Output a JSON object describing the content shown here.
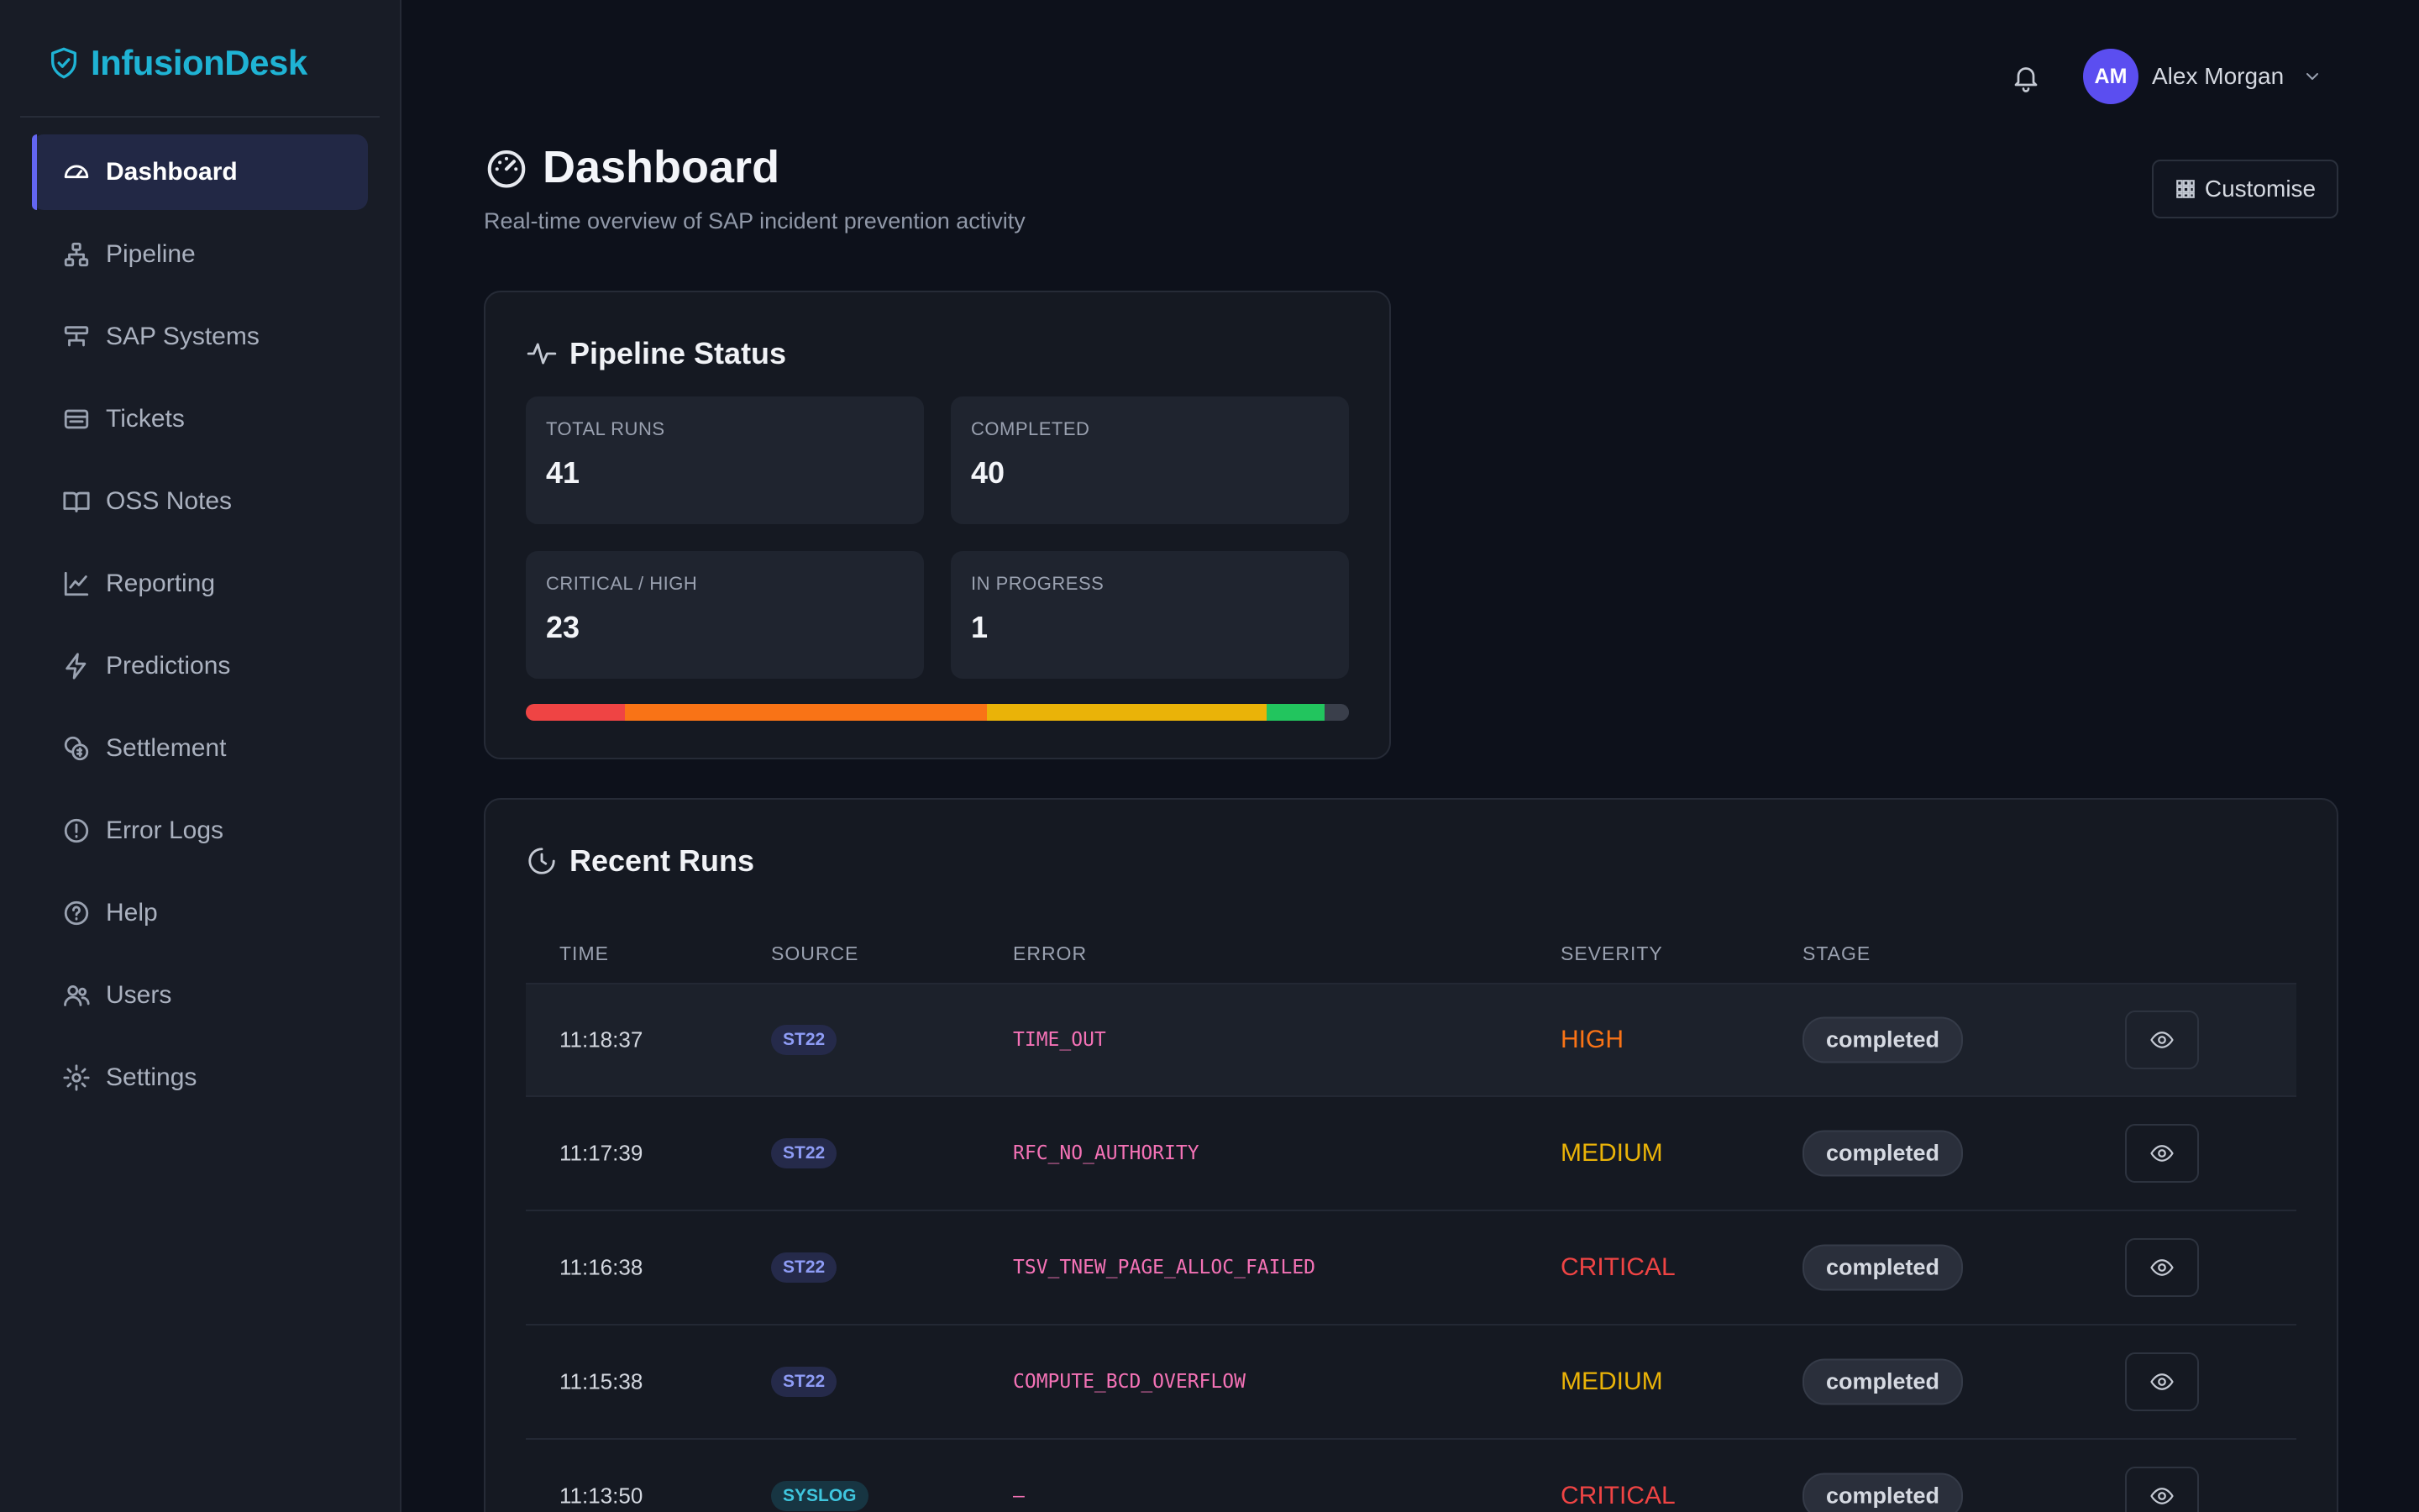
{
  "brand": {
    "name": "InfusionDesk",
    "icon": "shield-check-icon"
  },
  "sidebar": {
    "items": [
      {
        "label": "Dashboard",
        "icon": "gauge-icon",
        "active": true
      },
      {
        "label": "Pipeline",
        "icon": "hierarchy-icon"
      },
      {
        "label": "SAP Systems",
        "icon": "server-icon"
      },
      {
        "label": "Tickets",
        "icon": "ticket-icon"
      },
      {
        "label": "OSS Notes",
        "icon": "book-icon"
      },
      {
        "label": "Reporting",
        "icon": "chart-line-icon"
      },
      {
        "label": "Predictions",
        "icon": "bolt-icon"
      },
      {
        "label": "Settlement",
        "icon": "coins-icon"
      },
      {
        "label": "Error Logs",
        "icon": "alert-circle-icon"
      },
      {
        "label": "Help",
        "icon": "help-circle-icon"
      },
      {
        "label": "Users",
        "icon": "users-icon"
      },
      {
        "label": "Settings",
        "icon": "gear-icon"
      }
    ]
  },
  "topbar": {
    "user": {
      "initials": "AM",
      "name": "Alex Morgan"
    }
  },
  "header": {
    "title": "Dashboard",
    "subtitle": "Real-time overview of SAP incident prevention activity",
    "customise_label": "Customise"
  },
  "pipeline": {
    "title": "Pipeline Status",
    "stats": [
      {
        "label": "TOTAL RUNS",
        "value": "41"
      },
      {
        "label": "COMPLETED",
        "value": "40"
      },
      {
        "label": "CRITICAL / HIGH",
        "value": "23"
      },
      {
        "label": "IN PROGRESS",
        "value": "1"
      }
    ],
    "progress_segments": [
      {
        "fraction": 0.12,
        "color": "#ef4444"
      },
      {
        "fraction": 0.44,
        "color": "#f97316"
      },
      {
        "fraction": 0.34,
        "color": "#eab308"
      },
      {
        "fraction": 0.07,
        "color": "#22c55e"
      },
      {
        "fraction": 0.03,
        "color": "#3a3f4b"
      }
    ]
  },
  "recent_runs": {
    "title": "Recent Runs",
    "columns": [
      "TIME",
      "SOURCE",
      "ERROR",
      "SEVERITY",
      "STAGE"
    ],
    "rows": [
      {
        "time": "11:18:37",
        "source": "ST22",
        "error": "TIME_OUT",
        "severity": "HIGH",
        "stage": "completed"
      },
      {
        "time": "11:17:39",
        "source": "ST22",
        "error": "RFC_NO_AUTHORITY",
        "severity": "MEDIUM",
        "stage": "completed"
      },
      {
        "time": "11:16:38",
        "source": "ST22",
        "error": "TSV_TNEW_PAGE_ALLOC_FAILED",
        "severity": "CRITICAL",
        "stage": "completed"
      },
      {
        "time": "11:15:38",
        "source": "ST22",
        "error": "COMPUTE_BCD_OVERFLOW",
        "severity": "MEDIUM",
        "stage": "completed"
      },
      {
        "time": "11:13:50",
        "source": "SYSLOG",
        "error": "—",
        "severity": "CRITICAL",
        "stage": "completed"
      }
    ],
    "severity_colors": {
      "HIGH": "#f97316",
      "MEDIUM": "#eab308",
      "CRITICAL": "#ef4444"
    }
  }
}
